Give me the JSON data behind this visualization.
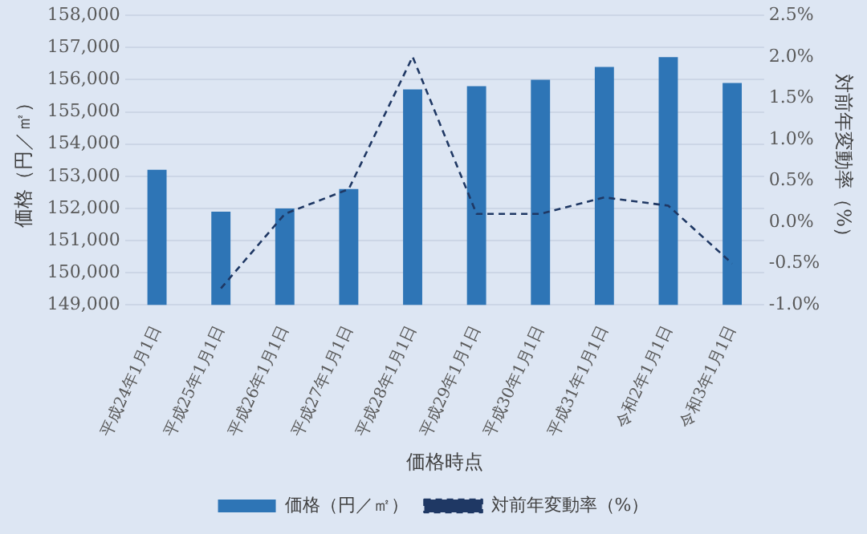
{
  "chart_data": {
    "type": "bar",
    "categories": [
      "平成24年1月1日",
      "平成25年1月1日",
      "平成26年1月1日",
      "平成27年1月1日",
      "平成28年1月1日",
      "平成29年1月1日",
      "平成30年1月1日",
      "平成31年1月1日",
      "令和2年1月1日",
      "令和3年1月1日"
    ],
    "series": [
      {
        "name": "価格（円／㎡）",
        "color": "#2e75b6",
        "values": [
          153200,
          151900,
          152000,
          152600,
          155700,
          155800,
          156000,
          156400,
          156700,
          155900
        ]
      },
      {
        "name": "対前年変動率（%）",
        "type": "line",
        "axis": "y2",
        "color": "#1f3864",
        "line_style": "dashed",
        "marker": "none",
        "values": [
          null,
          -0.8,
          0.1,
          0.4,
          2.0,
          0.1,
          0.1,
          0.3,
          0.2,
          -0.5
        ]
      }
    ],
    "xlabel": "価格時点",
    "ylabel": "価格（円／㎡）",
    "y2label": "対前年変動率（%）",
    "ylim": [
      149000,
      158000
    ],
    "yticks": [
      {
        "value": 149000,
        "label": "149,000"
      },
      {
        "value": 150000,
        "label": "150,000"
      },
      {
        "value": 151000,
        "label": "151,000"
      },
      {
        "value": 152000,
        "label": "152,000"
      },
      {
        "value": 153000,
        "label": "153,000"
      },
      {
        "value": 154000,
        "label": "154,000"
      },
      {
        "value": 155000,
        "label": "155,000"
      },
      {
        "value": 156000,
        "label": "156,000"
      },
      {
        "value": 157000,
        "label": "157,000"
      },
      {
        "value": 158000,
        "label": "158,000"
      }
    ],
    "y2lim": [
      -1.0,
      2.5
    ],
    "y2ticks": [
      {
        "value": -1.0,
        "label": "-1.0%"
      },
      {
        "value": -0.5,
        "label": "-0.5%"
      },
      {
        "value": 0,
        "label": "0.0%"
      },
      {
        "value": 0.5,
        "label": "0.5%"
      },
      {
        "value": 1.0,
        "label": "1.0%"
      },
      {
        "value": 1.5,
        "label": "1.5%"
      },
      {
        "value": 2.0,
        "label": "2.0%"
      },
      {
        "value": 2.5,
        "label": "2.5%"
      }
    ],
    "grid": "y",
    "legend": "bottom"
  }
}
